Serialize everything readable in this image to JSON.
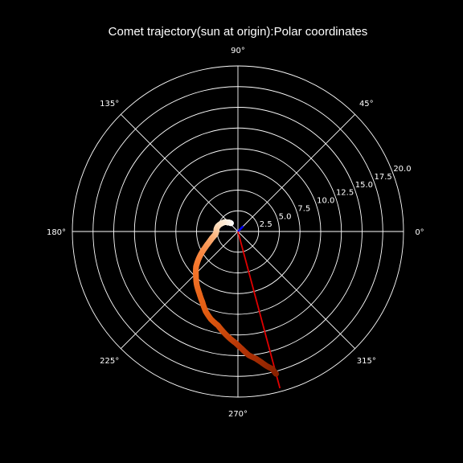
{
  "chart_data": {
    "type": "scatter",
    "coordinate_system": "polar",
    "title": "Comet trajectory(sun at origin):Polar coordinates",
    "theta_ticks": [
      {
        "deg": 0,
        "label": "0°"
      },
      {
        "deg": 45,
        "label": "45°"
      },
      {
        "deg": 90,
        "label": "90°"
      },
      {
        "deg": 135,
        "label": "135°"
      },
      {
        "deg": 180,
        "label": "180°"
      },
      {
        "deg": 225,
        "label": "225°"
      },
      {
        "deg": 270,
        "label": "270°"
      },
      {
        "deg": 315,
        "label": "315°"
      }
    ],
    "r_ticks": [
      2.5,
      5.0,
      7.5,
      10.0,
      12.5,
      15.0,
      17.5,
      20.0
    ],
    "r_tick_labels": [
      "2.5",
      "5.0",
      "7.5",
      "10.0",
      "12.5",
      "15.0",
      "17.5",
      "20.0"
    ],
    "r_lim": [
      0,
      20.0
    ],
    "r_label_angle_deg": 22.5,
    "grid": true,
    "background_color": "#000000",
    "grid_color": "#ffffff",
    "colormap": [
      "#ffffff",
      "#fde4c8",
      "#fdb27a",
      "#f7782d",
      "#e05a10",
      "#b23306",
      "#8a2200"
    ],
    "trajectory": {
      "theta_deg": [
        130,
        134,
        138,
        143,
        150,
        157,
        165,
        172,
        180,
        186,
        190,
        194,
        198,
        202,
        206,
        210,
        215,
        220,
        226,
        232,
        238,
        243,
        248,
        253,
        258,
        262,
        266,
        269,
        272,
        275,
        278,
        280,
        282,
        284,
        285
      ],
      "r": [
        1.3,
        1.5,
        1.6,
        1.9,
        2.1,
        2.3,
        2.5,
        2.6,
        2.6,
        2.7,
        2.9,
        3.2,
        3.5,
        3.9,
        4.4,
        5.0,
        5.8,
        6.6,
        7.3,
        8.1,
        8.8,
        9.5,
        10.4,
        11.1,
        11.6,
        12.3,
        13.0,
        13.5,
        14.2,
        15.0,
        15.5,
        16.0,
        16.6,
        17.1,
        17.8
      ]
    },
    "sun_vector": {
      "theta_deg": 45,
      "r": 0.9,
      "color": "#0000ff"
    },
    "current_position_vector": {
      "theta_deg": 285,
      "r": 19.6,
      "color": "#e00000"
    }
  }
}
